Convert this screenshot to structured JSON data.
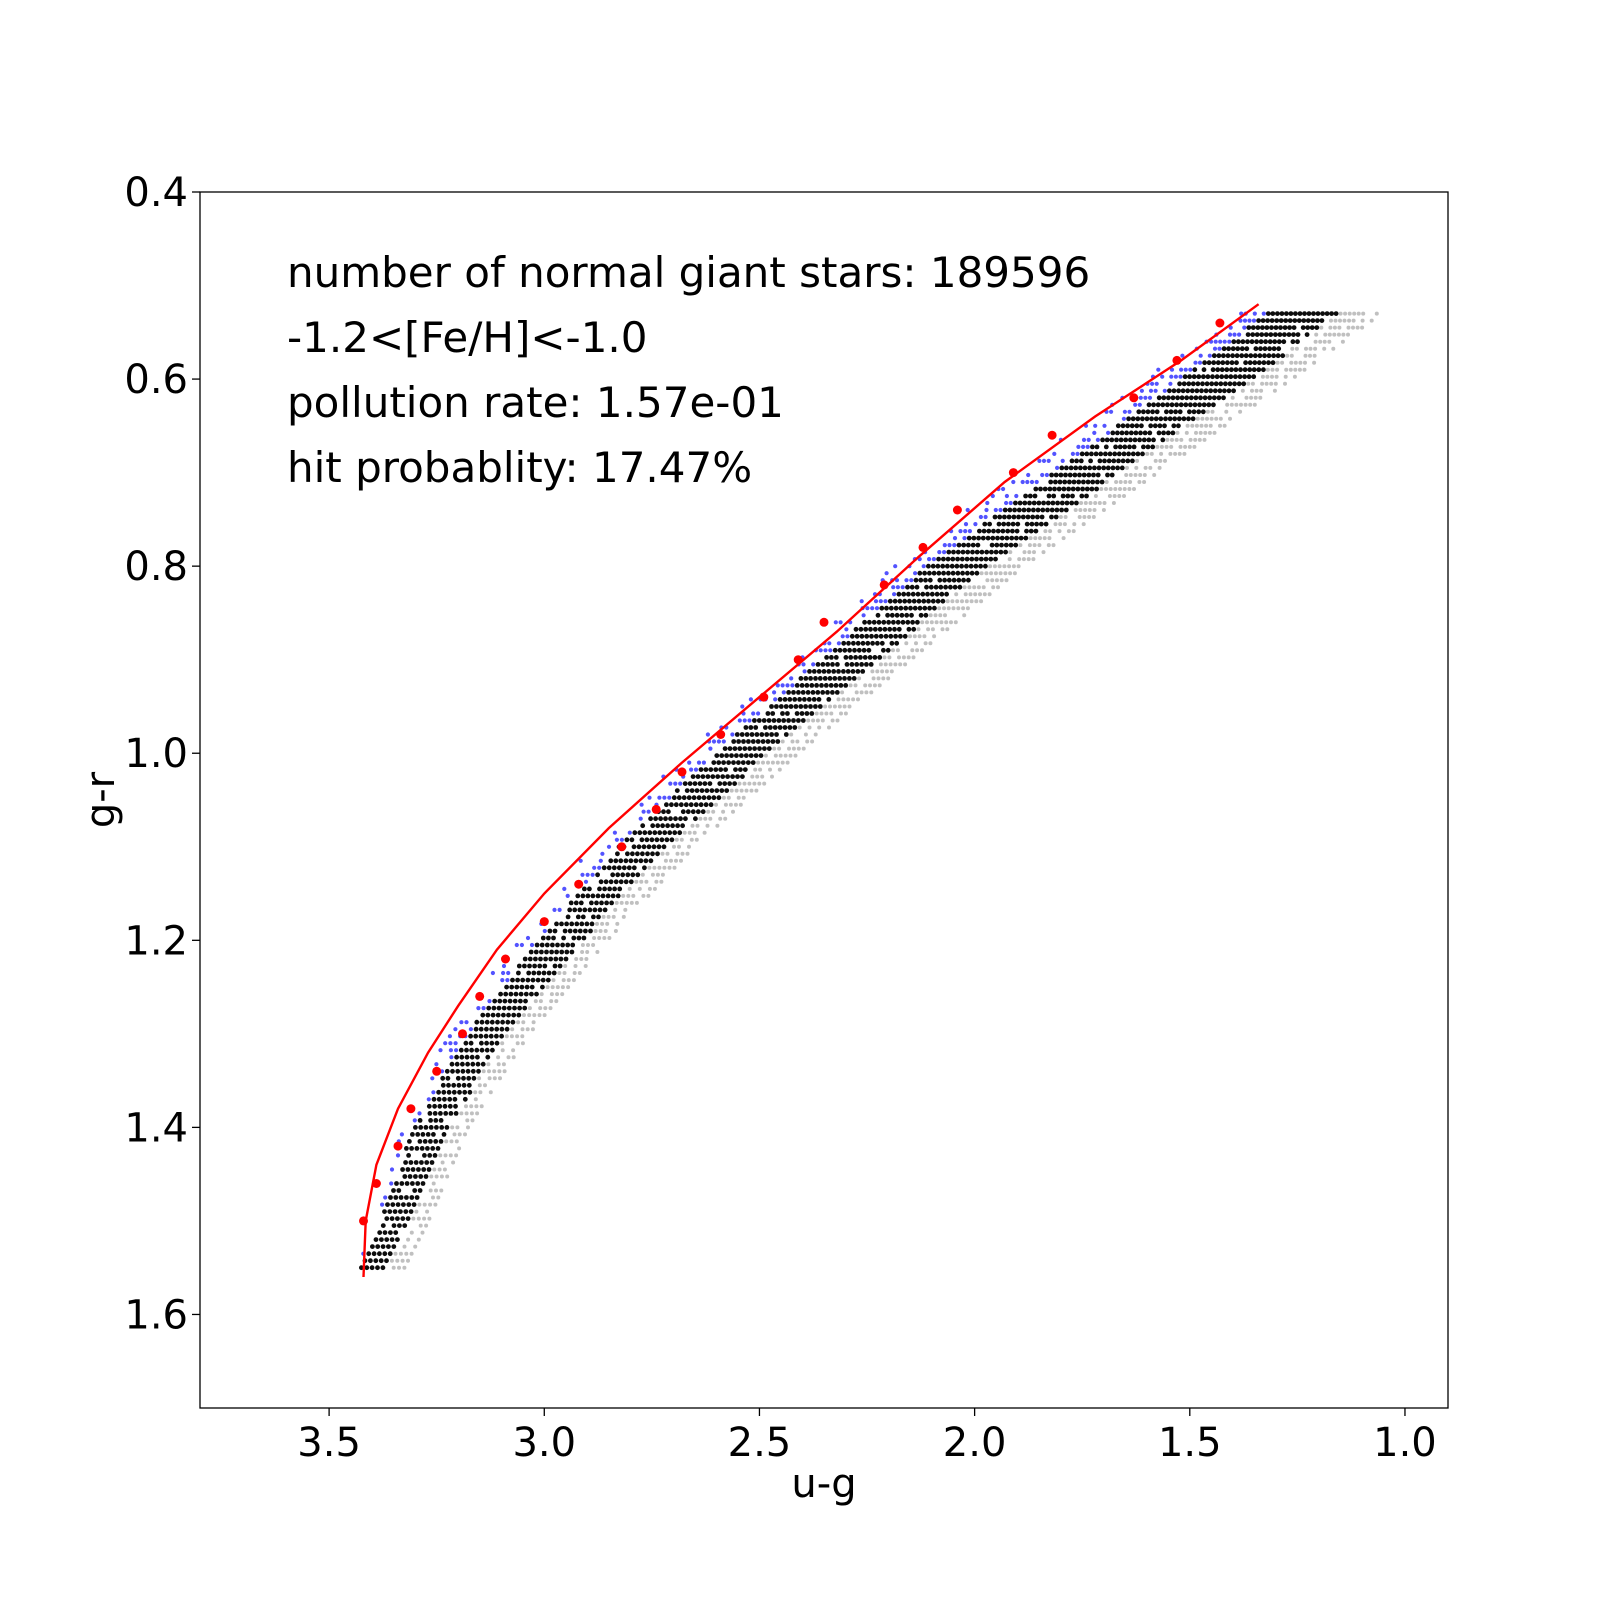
{
  "chart_data": {
    "type": "scatter",
    "xlabel": "u-g",
    "ylabel": "g-r",
    "xlim": [
      3.8,
      0.9
    ],
    "ylim": [
      1.7,
      0.4
    ],
    "x_inverted": true,
    "y_inverted": true,
    "xticks": [
      "3.5",
      "3.0",
      "2.5",
      "2.0",
      "1.5",
      "1.0"
    ],
    "yticks": [
      "0.4",
      "0.6",
      "0.8",
      "1.0",
      "1.2",
      "1.4",
      "1.6"
    ],
    "grid": false,
    "annotations": [
      "number of normal giant stars: 189596",
      "-1.2<[Fe/H]<-1.0",
      "pollution rate: 1.57e-01",
      "hit probablity: 17.47%"
    ],
    "colors": {
      "giants": "#000000",
      "giants_faint": "#b0b0b0",
      "polluters": "#1a1aff",
      "fit": "#ff0000"
    },
    "density_band": {
      "description_values": "black giant-star locus in bins of 0.01 in g-r",
      "centerline": [
        {
          "gr": 0.53,
          "ug": 1.25
        },
        {
          "gr": 0.6,
          "ug": 1.45
        },
        {
          "gr": 0.7,
          "ug": 1.75
        },
        {
          "gr": 0.8,
          "ug": 2.05
        },
        {
          "gr": 0.9,
          "ug": 2.3
        },
        {
          "gr": 1.0,
          "ug": 2.55
        },
        {
          "gr": 1.1,
          "ug": 2.78
        },
        {
          "gr": 1.2,
          "ug": 2.97
        },
        {
          "gr": 1.3,
          "ug": 3.14
        },
        {
          "gr": 1.4,
          "ug": 3.27
        },
        {
          "gr": 1.5,
          "ug": 3.35
        },
        {
          "gr": 1.55,
          "ug": 3.4
        }
      ]
    },
    "fit_curve": {
      "name": "",
      "points": [
        {
          "ug": 3.42,
          "gr": 1.56
        },
        {
          "ug": 3.415,
          "gr": 1.5
        },
        {
          "ug": 3.39,
          "gr": 1.44
        },
        {
          "ug": 3.34,
          "gr": 1.38
        },
        {
          "ug": 3.27,
          "gr": 1.32
        },
        {
          "ug": 3.2,
          "gr": 1.27
        },
        {
          "ug": 3.11,
          "gr": 1.21
        },
        {
          "ug": 3.0,
          "gr": 1.15
        },
        {
          "ug": 2.85,
          "gr": 1.08
        },
        {
          "ug": 2.68,
          "gr": 1.01
        },
        {
          "ug": 2.5,
          "gr": 0.94
        },
        {
          "ug": 2.32,
          "gr": 0.87
        },
        {
          "ug": 2.13,
          "gr": 0.79
        },
        {
          "ug": 1.93,
          "gr": 0.71
        },
        {
          "ug": 1.72,
          "gr": 0.64
        },
        {
          "ug": 1.52,
          "gr": 0.58
        },
        {
          "ug": 1.34,
          "gr": 0.52
        }
      ]
    },
    "fit_points": [
      {
        "ug": 3.42,
        "gr": 1.5
      },
      {
        "ug": 3.39,
        "gr": 1.46
      },
      {
        "ug": 3.34,
        "gr": 1.42
      },
      {
        "ug": 3.31,
        "gr": 1.38
      },
      {
        "ug": 3.25,
        "gr": 1.34
      },
      {
        "ug": 3.19,
        "gr": 1.3
      },
      {
        "ug": 3.15,
        "gr": 1.26
      },
      {
        "ug": 3.09,
        "gr": 1.22
      },
      {
        "ug": 3.0,
        "gr": 1.18
      },
      {
        "ug": 2.92,
        "gr": 1.14
      },
      {
        "ug": 2.82,
        "gr": 1.1
      },
      {
        "ug": 2.74,
        "gr": 1.06
      },
      {
        "ug": 2.68,
        "gr": 1.02
      },
      {
        "ug": 2.59,
        "gr": 0.98
      },
      {
        "ug": 2.49,
        "gr": 0.94
      },
      {
        "ug": 2.41,
        "gr": 0.9
      },
      {
        "ug": 2.35,
        "gr": 0.86
      },
      {
        "ug": 2.12,
        "gr": 0.78
      },
      {
        "ug": 2.21,
        "gr": 0.82
      },
      {
        "ug": 2.04,
        "gr": 0.74
      },
      {
        "ug": 1.91,
        "gr": 0.7
      },
      {
        "ug": 1.82,
        "gr": 0.66
      },
      {
        "ug": 1.63,
        "gr": 0.62
      },
      {
        "ug": 1.53,
        "gr": 0.58
      },
      {
        "ug": 1.43,
        "gr": 0.54
      }
    ]
  }
}
